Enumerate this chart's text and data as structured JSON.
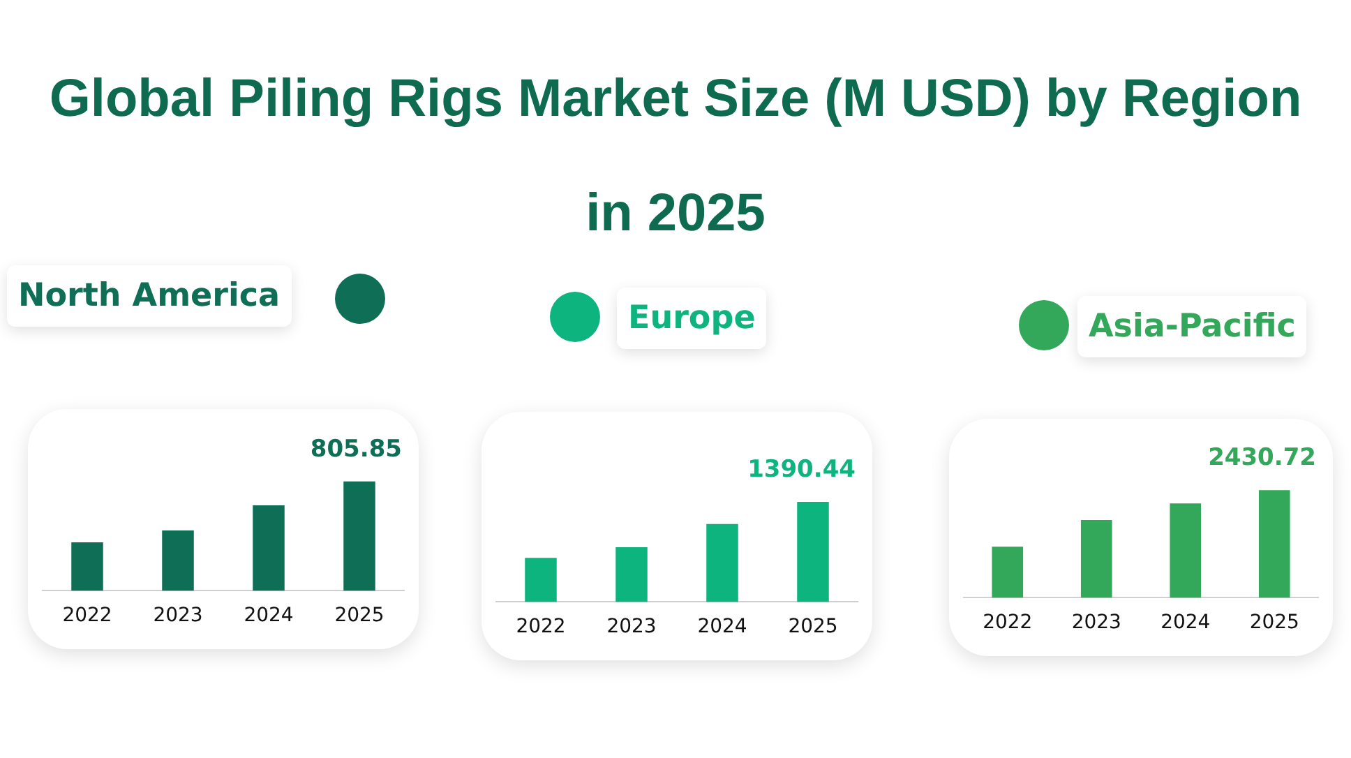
{
  "chart_data": [
    {
      "type": "other",
      "title": "Global Piling Rigs Market Size (M USD) by Region in 2025"
    },
    {
      "type": "bar",
      "title": "North America",
      "categories": [
        "2022",
        "2023",
        "2024",
        "2025"
      ],
      "values": [
        357,
        445,
        630,
        805.85
      ],
      "color": "#0f6e56",
      "value_labels": [
        null,
        null,
        null,
        "805.85"
      ]
    },
    {
      "type": "bar",
      "title": "Europe",
      "categories": [
        "2022",
        "2023",
        "2024",
        "2025"
      ],
      "values": [
        612,
        760,
        1082,
        1390.44
      ],
      "color": "#0db47e",
      "value_labels": [
        null,
        null,
        null,
        "1390.44"
      ]
    },
    {
      "type": "bar",
      "title": "Asia-Pacific",
      "categories": [
        "2022",
        "2023",
        "2024",
        "2025"
      ],
      "values": [
        1153,
        1754,
        2130,
        2430.72
      ],
      "color": "#34a85a",
      "value_labels": [
        null,
        null,
        null,
        "2430.72"
      ]
    }
  ]
}
